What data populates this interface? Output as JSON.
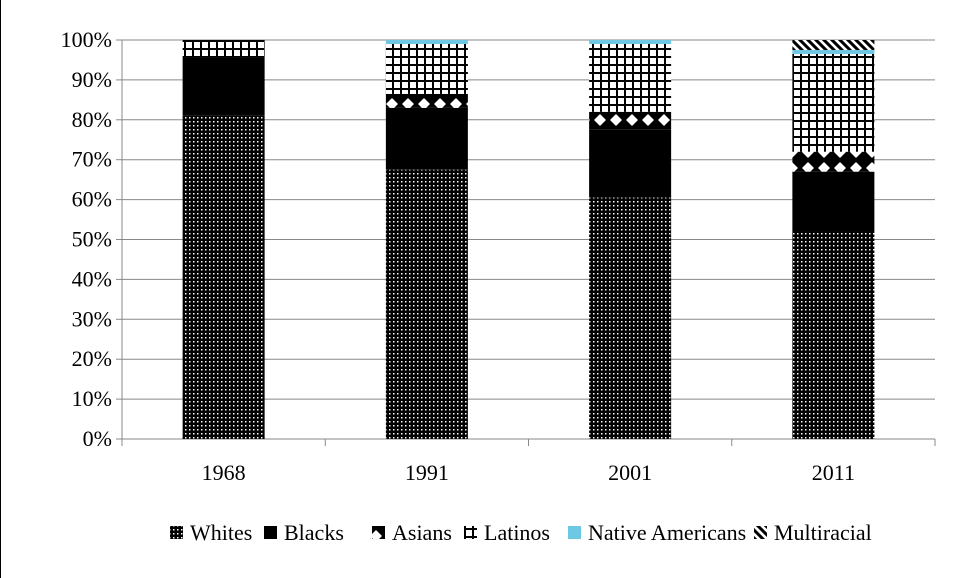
{
  "chart_data": {
    "type": "bar",
    "stacked": true,
    "categories": [
      "1968",
      "1991",
      "2001",
      "2011"
    ],
    "ylim": [
      0,
      100
    ],
    "yticks": [
      "0%",
      "10%",
      "20%",
      "30%",
      "40%",
      "50%",
      "60%",
      "70%",
      "80%",
      "90%",
      "100%"
    ],
    "grid": true,
    "legend_position": "bottom",
    "series": [
      {
        "name": "Whites",
        "values": [
          81,
          67.5,
          60.5,
          52
        ],
        "pattern": "dots",
        "color": "#000000"
      },
      {
        "name": "Blacks",
        "values": [
          14.5,
          15.5,
          17,
          15
        ],
        "pattern": "solid",
        "color": "#000000"
      },
      {
        "name": "Asians",
        "values": [
          0,
          3.5,
          4.5,
          5
        ],
        "pattern": "diamonds",
        "color": "#000000"
      },
      {
        "name": "Latinos",
        "values": [
          4.5,
          12.5,
          17,
          24.5
        ],
        "pattern": "grid",
        "color": "#000000"
      },
      {
        "name": "Native Americans",
        "values": [
          0,
          1,
          1,
          1
        ],
        "pattern": "solid",
        "color": "#6fc8e3"
      },
      {
        "name": "Multiracial",
        "values": [
          0,
          0,
          0,
          2.5
        ],
        "pattern": "diagonal",
        "color": "#000000"
      }
    ]
  }
}
